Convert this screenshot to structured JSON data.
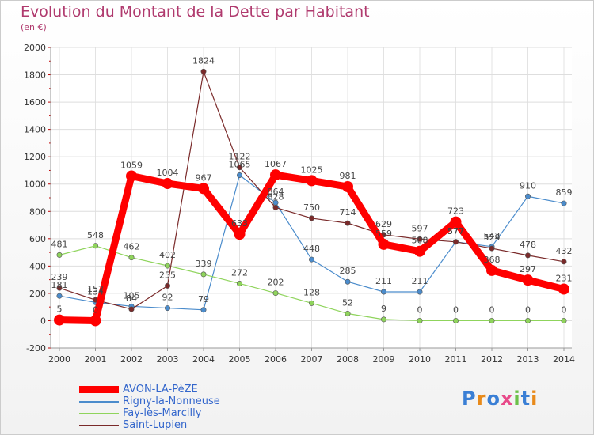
{
  "chart_data": {
    "type": "line",
    "title": "Evolution du Montant de la Dette par Habitant",
    "ylabel": "(en €)",
    "xlabel": "",
    "x": [
      "2000",
      "2001",
      "2002",
      "2003",
      "2004",
      "2005",
      "2006",
      "2007",
      "2008",
      "2009",
      "2010",
      "2011",
      "2012",
      "2013",
      "2014"
    ],
    "ylim": [
      -200,
      2000
    ],
    "yticks": [
      -200,
      0,
      200,
      400,
      600,
      800,
      1000,
      1200,
      1400,
      1600,
      1800,
      2000
    ],
    "grid": true,
    "legend_position": "bottom-left",
    "series": [
      {
        "name": "AVON-LA-PèZE",
        "color": "#ff0000",
        "values": [
          5,
          0,
          1059,
          1004,
          967,
          633,
          1067,
          1025,
          981,
          559,
          508,
          723,
          368,
          297,
          231
        ],
        "labels": [
          "5",
          "0",
          "1059",
          "1004",
          "967",
          "633",
          "1067",
          "1025",
          "981",
          "559",
          "508",
          "723",
          "368",
          "297",
          "231"
        ]
      },
      {
        "name": "Rigny-la-Nonneuse",
        "color": "#4b8ccc",
        "values": [
          181,
          134,
          105,
          92,
          79,
          1065,
          864,
          448,
          285,
          211,
          211,
          577,
          542,
          910,
          859
        ],
        "labels": [
          "181",
          "134",
          "105",
          "92",
          "79",
          "1065",
          "864",
          "448",
          "285",
          "211",
          "211",
          "577",
          "542",
          "910",
          "859"
        ]
      },
      {
        "name": "Fay-lès-Marcilly",
        "color": "#8fd45c",
        "values": [
          481,
          548,
          462,
          402,
          339,
          272,
          202,
          128,
          52,
          9,
          0,
          0,
          0,
          0,
          0
        ],
        "labels": [
          "481",
          "548",
          "462",
          "402",
          "339",
          "272",
          "202",
          "128",
          "52",
          "9",
          "0",
          "0",
          "0",
          "0",
          "0"
        ]
      },
      {
        "name": "Saint-Lupien",
        "color": "#7a2a2a",
        "values": [
          239,
          152,
          84,
          255,
          1824,
          1122,
          828,
          750,
          714,
          629,
          597,
          577,
          529,
          478,
          432
        ],
        "labels": [
          "239",
          "152",
          "84",
          "255",
          "1824",
          "1122",
          "828",
          "750",
          "714",
          "629",
          "597",
          "577",
          "529",
          "478",
          "432"
        ]
      }
    ]
  },
  "legend": {
    "items": [
      {
        "label": "AVON-LA-PèZE",
        "color": "#ff0000"
      },
      {
        "label": "Rigny-la-Nonneuse",
        "color": "#4b8ccc"
      },
      {
        "label": "Fay-lès-Marcilly",
        "color": "#8fd45c"
      },
      {
        "label": "Saint-Lupien",
        "color": "#7a2a2a"
      }
    ]
  },
  "logo": {
    "text": "Proxiti"
  }
}
